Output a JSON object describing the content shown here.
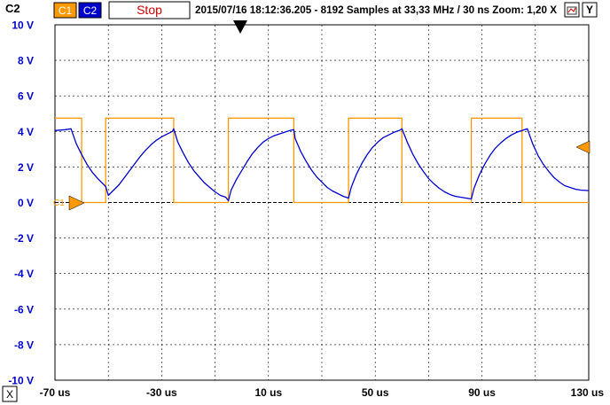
{
  "toolbar": {
    "channel_label": "C2",
    "c1_button": "C1",
    "c2_button": "C2",
    "stop_button": "Stop",
    "status": "2015/07/16  18:12:36.205 - 8192 Samples at 33,33 MHz / 30 ns Zoom: 1,20 X",
    "close_label": "X",
    "y_label": "Y",
    "bottom_close_label": "X"
  },
  "colors": {
    "c1": "#ff9900",
    "c2": "#0000cc",
    "stop_text": "#cc0000",
    "grid": "#000000",
    "background": "#ffffff"
  },
  "icons": [
    "chart-settings-icon",
    "trigger-marker-icon",
    "c1-ground-marker-icon",
    "trigger-level-marker-icon",
    "close-icon"
  ],
  "chart_data": {
    "type": "line",
    "title": "",
    "xlabel": "",
    "ylabel": "",
    "xlim": [
      -70,
      130
    ],
    "ylim": [
      -10,
      10
    ],
    "x_ticks": [
      "-70 us",
      "-30 us",
      "10 us",
      "50 us",
      "90 us",
      "130 us"
    ],
    "x_tick_values": [
      -70,
      -30,
      10,
      50,
      90,
      130
    ],
    "y_ticks": [
      "10 V",
      "8 V",
      "6 V",
      "4 V",
      "2 V",
      "0 V",
      "-2 V",
      "-4 V",
      "-6 V",
      "-8 V",
      "-10 V"
    ],
    "y_tick_values": [
      10,
      8,
      6,
      4,
      2,
      0,
      -2,
      -4,
      -6,
      -8,
      -10
    ],
    "grid": true,
    "marker_labels": {
      "c1_ground": "C1"
    },
    "series": [
      {
        "name": "C1",
        "color": "#ff9900",
        "x": [
          -70,
          -65,
          -65,
          -60,
          -60,
          -51,
          -51,
          -25.5,
          -25.5,
          -5,
          -5,
          19.5,
          19.5,
          40,
          40,
          60,
          60,
          86,
          86,
          105,
          105,
          130
        ],
        "values": [
          4.75,
          4.75,
          4.75,
          4.75,
          0,
          0,
          4.75,
          4.75,
          0,
          0,
          4.75,
          4.75,
          0,
          0,
          4.75,
          4.75,
          0,
          0,
          4.75,
          4.75,
          0,
          0
        ]
      },
      {
        "name": "C2",
        "color": "#0000cc",
        "x": [
          -70,
          -66,
          -64,
          -62,
          -60,
          -58,
          -56,
          -54,
          -52,
          -51,
          -50,
          -48,
          -46,
          -44,
          -42,
          -40,
          -38,
          -36,
          -34,
          -32,
          -30,
          -28,
          -26,
          -25.5,
          -24,
          -22,
          -20,
          -18,
          -16,
          -14,
          -12,
          -10,
          -8,
          -6,
          -5,
          -4,
          -2,
          0,
          2,
          4,
          6,
          8,
          10,
          12,
          14,
          16,
          18,
          19.5,
          20,
          22,
          24,
          26,
          28,
          30,
          32,
          34,
          36,
          38,
          40,
          41,
          43,
          45,
          47,
          49,
          51,
          53,
          55,
          57,
          59,
          60,
          62,
          64,
          66,
          68,
          70,
          72,
          74,
          76,
          78,
          80,
          82,
          84,
          86,
          87,
          89,
          91,
          93,
          95,
          97,
          99,
          101,
          103,
          105,
          107,
          109,
          111,
          113,
          115,
          117,
          119,
          121,
          123,
          125,
          127,
          129,
          130
        ],
        "values": [
          4.05,
          4.1,
          4.15,
          3.3,
          2.7,
          2.15,
          1.7,
          1.35,
          1.05,
          0.9,
          0.4,
          0.7,
          1.0,
          1.4,
          1.8,
          2.2,
          2.6,
          2.95,
          3.25,
          3.5,
          3.7,
          3.85,
          4.0,
          4.15,
          3.4,
          2.8,
          2.25,
          1.8,
          1.45,
          1.1,
          0.85,
          0.6,
          0.4,
          0.3,
          0.1,
          0.7,
          1.3,
          1.8,
          2.3,
          2.75,
          3.1,
          3.4,
          3.6,
          3.75,
          3.85,
          3.95,
          4.05,
          4.1,
          3.6,
          2.9,
          2.35,
          1.85,
          1.45,
          1.15,
          0.85,
          0.65,
          0.5,
          0.35,
          0.25,
          0.85,
          1.6,
          2.2,
          2.7,
          3.1,
          3.4,
          3.65,
          3.8,
          3.95,
          4.05,
          4.15,
          3.4,
          2.75,
          2.2,
          1.75,
          1.35,
          1.05,
          0.8,
          0.6,
          0.45,
          0.35,
          0.3,
          0.25,
          0.2,
          0.8,
          1.55,
          2.15,
          2.65,
          3.05,
          3.35,
          3.6,
          3.8,
          3.95,
          4.05,
          4.15,
          3.3,
          2.65,
          2.15,
          1.75,
          1.4,
          1.15,
          0.95,
          0.85,
          0.75,
          0.7,
          0.68,
          0.67
        ]
      }
    ]
  }
}
